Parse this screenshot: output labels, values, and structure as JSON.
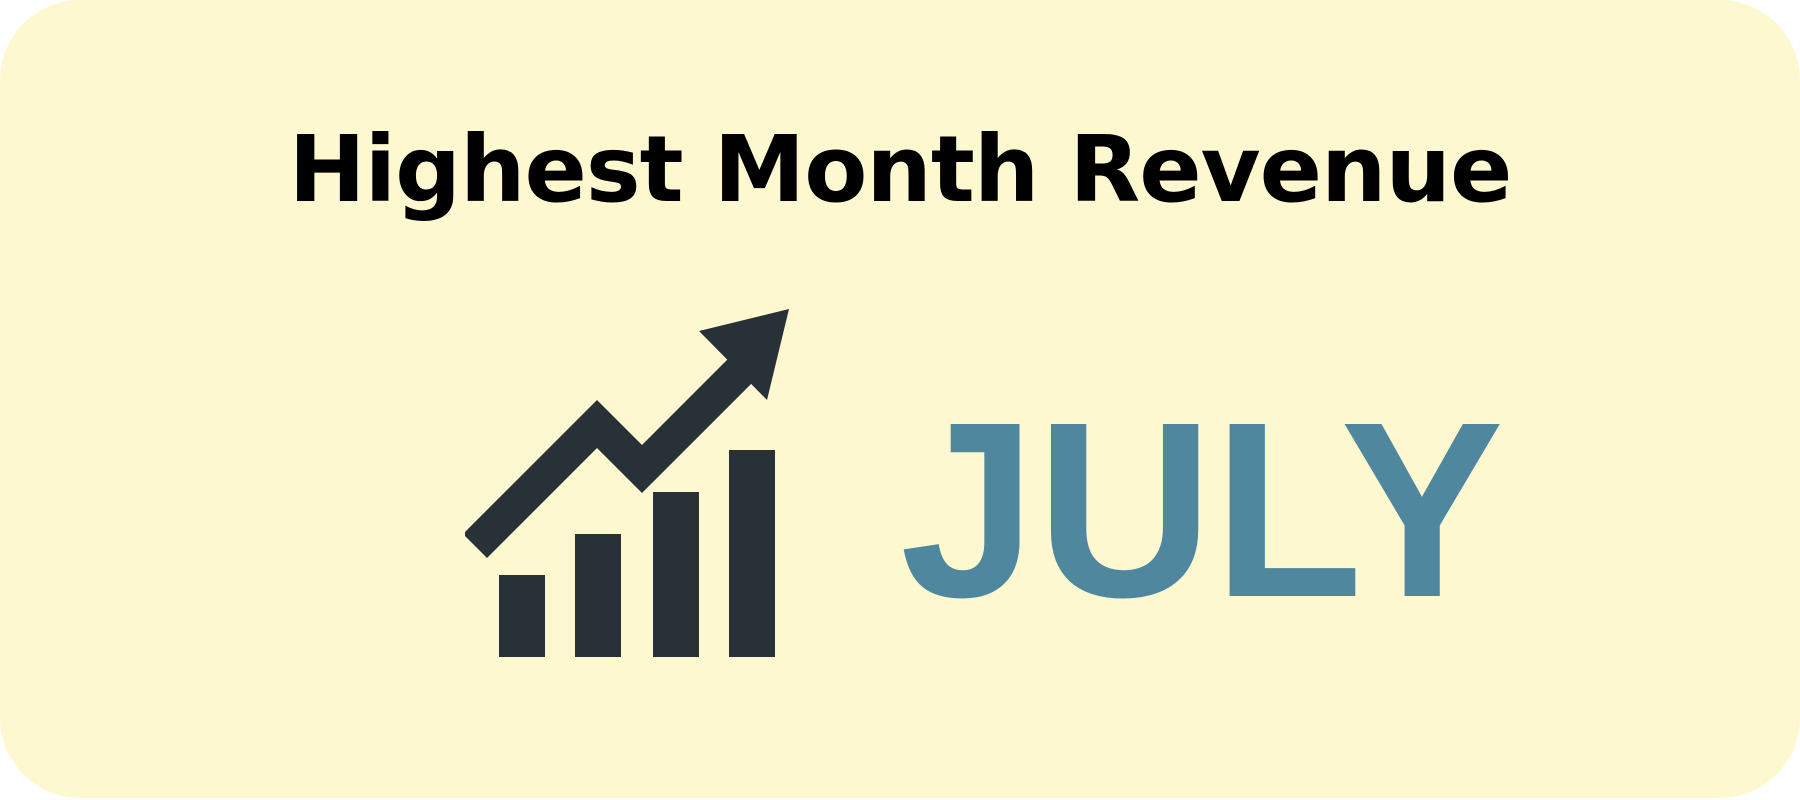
{
  "title": "Highest Month Revenue",
  "month": "JULY",
  "colors": {
    "background": "#fdf8d0",
    "icon": "#293138",
    "month_text": "#4f879f",
    "title_text": "#000000"
  },
  "icons": {
    "growth": "bar-chart-growth-arrow-icon"
  }
}
